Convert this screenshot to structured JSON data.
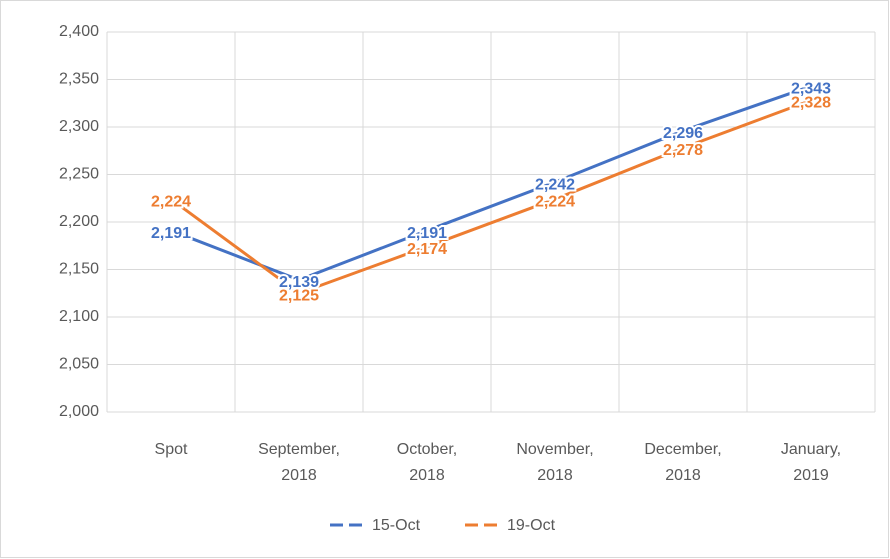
{
  "chart_data": {
    "type": "line",
    "categories": [
      "Spot",
      "September, 2018",
      "October, 2018",
      "November, 2018",
      "December, 2018",
      "January, 2019"
    ],
    "series": [
      {
        "name": "15-Oct",
        "color": "#4472c4",
        "values": [
          2191,
          2139,
          2191,
          2242,
          2296,
          2343
        ],
        "value_labels": [
          "2,191",
          "2,139",
          "2,191",
          "2,242",
          "2,296",
          "2,343"
        ]
      },
      {
        "name": "19-Oct",
        "color": "#ed7d31",
        "values": [
          2224,
          2125,
          2174,
          2224,
          2278,
          2328
        ],
        "value_labels": [
          "2,224",
          "2,125",
          "2,174",
          "2,224",
          "2,278",
          "2,328"
        ]
      }
    ],
    "ylim": [
      2000,
      2400
    ],
    "yticks": [
      {
        "value": 2000,
        "label": "2,000"
      },
      {
        "value": 2050,
        "label": "2,050"
      },
      {
        "value": 2100,
        "label": "2,100"
      },
      {
        "value": 2150,
        "label": "2,150"
      },
      {
        "value": 2200,
        "label": "2,200"
      },
      {
        "value": 2250,
        "label": "2,250"
      },
      {
        "value": 2300,
        "label": "2,300"
      },
      {
        "value": 2350,
        "label": "2,350"
      },
      {
        "value": 2400,
        "label": "2,400"
      }
    ],
    "grid": true,
    "legend": "bottom"
  }
}
